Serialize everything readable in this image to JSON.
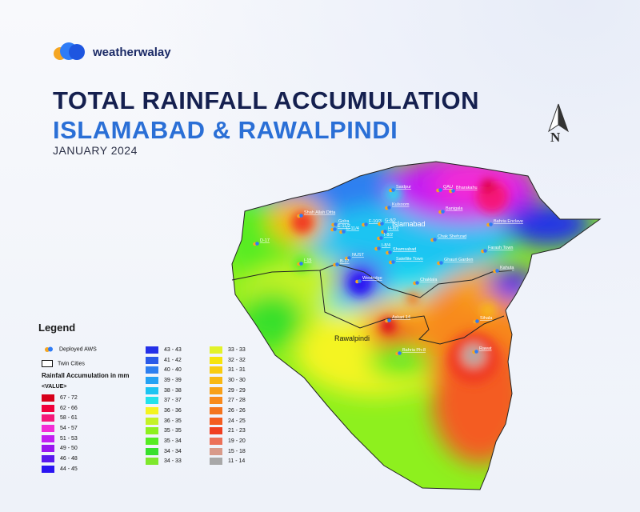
{
  "brand": {
    "name": "weatherwalay"
  },
  "header": {
    "title_line1": "TOTAL RAINFALL ACCUMULATION",
    "title_line2": "ISLAMABAD & RAWALPINDI",
    "subtitle": "JANUARY 2024"
  },
  "north_arrow": {
    "label": "N"
  },
  "map": {
    "city_labels": {
      "islamabad": "Islamabad",
      "rawalpindi": "Rawalpindi"
    },
    "stations": [
      {
        "name": "Saidpur"
      },
      {
        "name": "QAU"
      },
      {
        "name": "Bharakahu"
      },
      {
        "name": "Kulsoom"
      },
      {
        "name": "Banigala"
      },
      {
        "name": "Shah Allah Ditta"
      },
      {
        "name": "Golra"
      },
      {
        "name": "E-11/2"
      },
      {
        "name": "F-10/3"
      },
      {
        "name": "G-8/2"
      },
      {
        "name": "E-11/4"
      },
      {
        "name": "H-8/2"
      },
      {
        "name": "Bahria Enclave"
      },
      {
        "name": "I-8/2"
      },
      {
        "name": "Chak Shehzad"
      },
      {
        "name": "D-17"
      },
      {
        "name": "I-8/4"
      },
      {
        "name": "Farash Town"
      },
      {
        "name": "NUST"
      },
      {
        "name": "Shamsabad"
      },
      {
        "name": "I-15"
      },
      {
        "name": "B-17"
      },
      {
        "name": "Satellite Town"
      },
      {
        "name": "Ghauri Garden"
      },
      {
        "name": "Westridge"
      },
      {
        "name": "Chaklala"
      },
      {
        "name": "Askari 14"
      },
      {
        "name": "Sihala"
      },
      {
        "name": "Bahria Ph-8"
      },
      {
        "name": "Kahuta"
      },
      {
        "name": "Rawat"
      }
    ]
  },
  "legend": {
    "title": "Legend",
    "aws_label": "Deployed AWS",
    "twin_label": "Twin Cities",
    "heading": "Rainfall Accumulation in mm",
    "value_label": "<VALUE>",
    "col1": [
      {
        "label": "67 - 72",
        "color": "#d7001a"
      },
      {
        "label": "62 - 66",
        "color": "#f0003c"
      },
      {
        "label": "58 - 61",
        "color": "#f5187a"
      },
      {
        "label": "54 - 57",
        "color": "#f22cd6"
      },
      {
        "label": "51 - 53",
        "color": "#c21ef2"
      },
      {
        "label": "49 - 50",
        "color": "#9a16f0"
      },
      {
        "label": "46 - 48",
        "color": "#5a18ee"
      },
      {
        "label": "44 - 45",
        "color": "#2a14f2"
      }
    ],
    "col2": [
      {
        "label": "43 - 43",
        "color": "#2430e8"
      },
      {
        "label": "41 - 42",
        "color": "#2a5ae8"
      },
      {
        "label": "40 - 40",
        "color": "#2d7ff0"
      },
      {
        "label": "39 - 39",
        "color": "#24a2f4"
      },
      {
        "label": "38 - 38",
        "color": "#1cc4f2"
      },
      {
        "label": "37 - 37",
        "color": "#22e2ec"
      },
      {
        "label": "36 - 36",
        "color": "#f4f420"
      },
      {
        "label": "36 - 35",
        "color": "#c4f226"
      },
      {
        "label": "35 - 35",
        "color": "#8ef01e"
      },
      {
        "label": "35 - 34",
        "color": "#56ec22"
      },
      {
        "label": "34 - 34",
        "color": "#38e02c"
      },
      {
        "label": "34 - 33",
        "color": "#7ee82c"
      }
    ],
    "col3": [
      {
        "label": "33 - 33",
        "color": "#e2f22a"
      },
      {
        "label": "32 - 32",
        "color": "#f6e40c"
      },
      {
        "label": "31 - 31",
        "color": "#f8cc10"
      },
      {
        "label": "30 - 30",
        "color": "#f8b814"
      },
      {
        "label": "29 - 29",
        "color": "#f8a018"
      },
      {
        "label": "27 - 28",
        "color": "#f88a1c"
      },
      {
        "label": "26 - 26",
        "color": "#f4741e"
      },
      {
        "label": "24 - 25",
        "color": "#f45c20"
      },
      {
        "label": "21 - 23",
        "color": "#f03e20"
      },
      {
        "label": "19 - 20",
        "color": "#ec7058"
      },
      {
        "label": "15 - 18",
        "color": "#d89a8a"
      },
      {
        "label": "11 - 14",
        "color": "#a8a8a8"
      }
    ]
  }
}
